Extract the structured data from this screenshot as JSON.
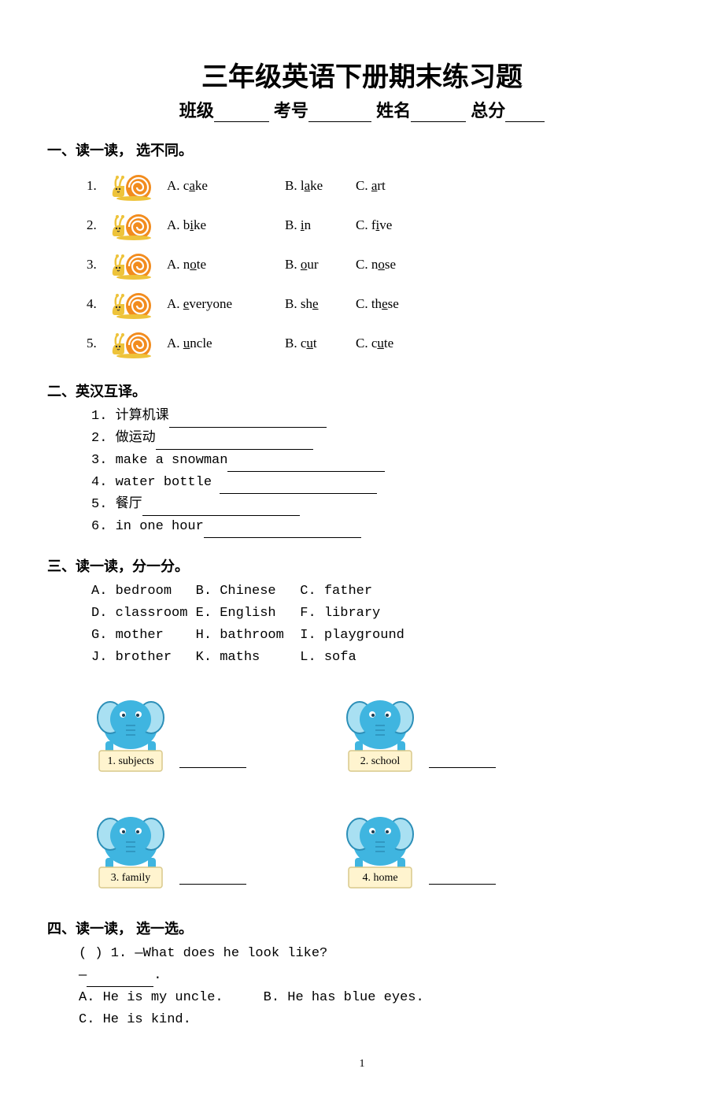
{
  "title": "三年级英语下册期末练习题",
  "info": {
    "class_label": "班级",
    "exam_no_label": "考号",
    "name_label": "姓名",
    "total_label": "总分"
  },
  "sections": {
    "s1": {
      "heading": "一、读一读，  选不同。",
      "items": [
        {
          "num": "1.",
          "a_pre": "A. c",
          "a_u": "a",
          "a_post": "ke",
          "b_pre": "B. l",
          "b_u": "a",
          "b_post": "ke",
          "c_pre": "C. ",
          "c_u": "a",
          "c_post": "rt"
        },
        {
          "num": "2.",
          "a_pre": "A. b",
          "a_u": "i",
          "a_post": "ke",
          "b_pre": "B. ",
          "b_u": "i",
          "b_post": "n",
          "c_pre": "C. f",
          "c_u": "i",
          "c_post": "ve"
        },
        {
          "num": "3.",
          "a_pre": "A. n",
          "a_u": "o",
          "a_post": "te",
          "b_pre": "B. ",
          "b_u": "o",
          "b_post": "ur",
          "c_pre": "C. n",
          "c_u": "o",
          "c_post": "se"
        },
        {
          "num": "4.",
          "a_pre": "A. ",
          "a_u": "e",
          "a_post": "veryone",
          "b_pre": "B. sh",
          "b_u": "e",
          "b_post": "",
          "c_pre": "C. th",
          "c_u": "e",
          "c_post": "se"
        },
        {
          "num": "5.",
          "a_pre": "A. ",
          "a_u": "u",
          "a_post": "ncle",
          "b_pre": "B. c",
          "b_u": "u",
          "b_post": "t",
          "c_pre": "C. c",
          "c_u": "u",
          "c_post": "te"
        }
      ]
    },
    "s2": {
      "heading": "二、英汉互译。",
      "items": [
        {
          "num": "1.",
          "text": "计算机课",
          "blank_w": 200
        },
        {
          "num": "2.",
          "text": "做运动",
          "blank_w": 200
        },
        {
          "num": "3.",
          "text": "make a snowman",
          "blank_w": 200
        },
        {
          "num": "4.",
          "text": "water bottle ",
          "blank_w": 200
        },
        {
          "num": "5.",
          "text": "餐厅",
          "blank_w": 200
        },
        {
          "num": "6.",
          "text": "in one hour",
          "blank_w": 200
        }
      ]
    },
    "s3": {
      "heading": "三、读一读，分一分。",
      "bank_rows": [
        "A. bedroom   B. Chinese   C. father",
        "D. classroom E. English   F. library",
        "G. mother    H. bathroom  I. playground",
        "J. brother   K. maths     L. sofa"
      ],
      "boxes": [
        {
          "label": "1. subjects"
        },
        {
          "label": "2. school"
        },
        {
          "label": "3. family"
        },
        {
          "label": "4. home"
        }
      ]
    },
    "s4": {
      "heading": "四、读一读，  选一选。",
      "q1_line1": "(  ) 1. —What does he look like?",
      "q1_line2": "—",
      "q1_opts_line1": "A. He is my uncle.     B. He has blue eyes.",
      "q1_opts_line2": "C. He is kind."
    }
  },
  "page_number": "1",
  "colors": {
    "snail_body": "#eec33a",
    "snail_shell": "#f28c1e",
    "snail_shell_dark": "#c96f12",
    "elephant_body": "#3fb5e0",
    "elephant_dark": "#2c8fb8",
    "elephant_ear": "#a9e0f2",
    "elephant_sign": "#fff4cf",
    "elephant_sign_border": "#d9c98c"
  }
}
